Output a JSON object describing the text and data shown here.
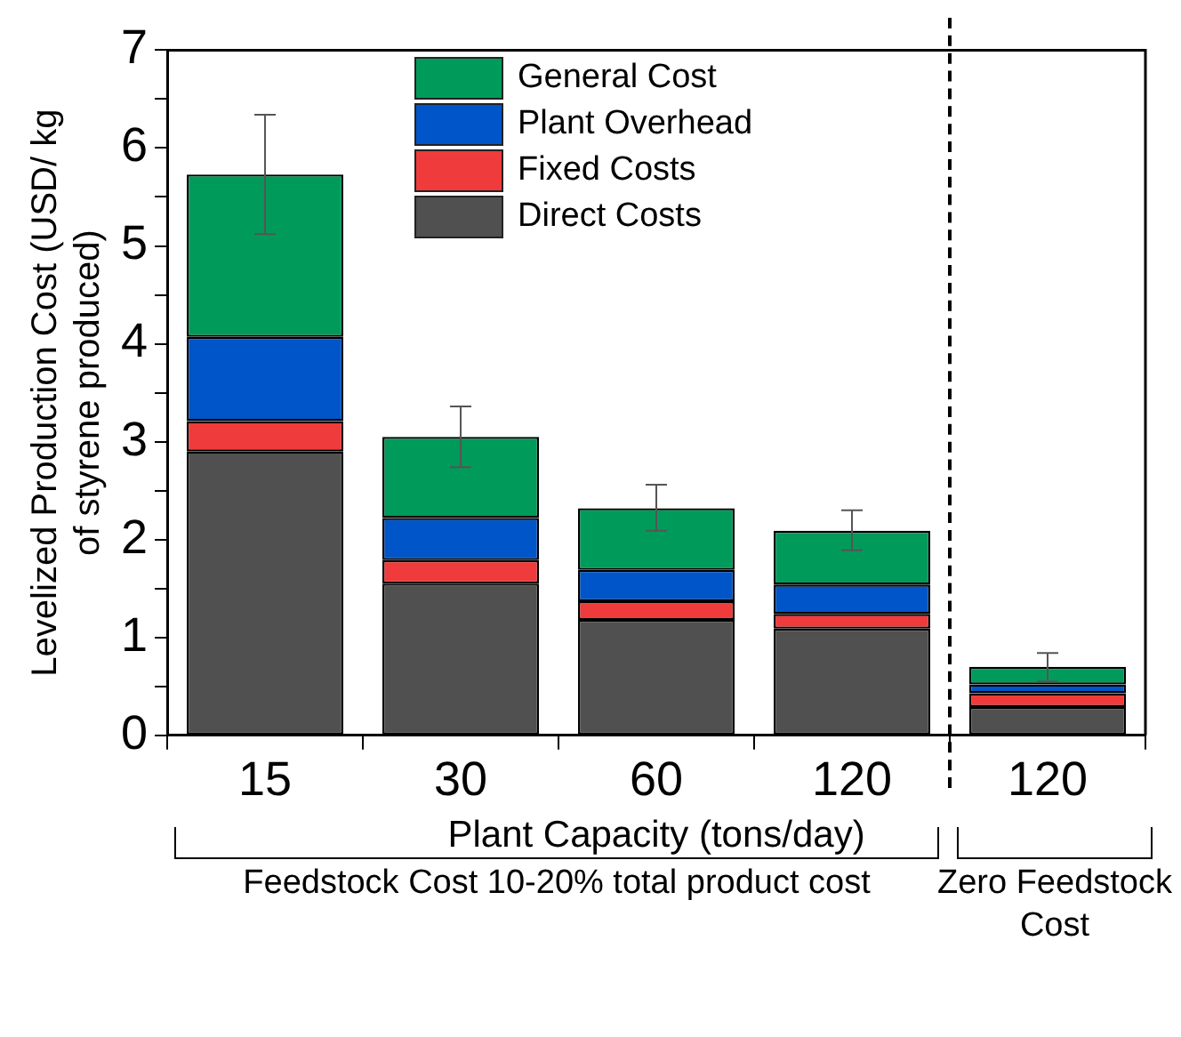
{
  "chart_data": {
    "type": "bar",
    "stacked": true,
    "xlabel": "Plant Capacity (tons/day)",
    "ylabel": "Levelized Production Cost (USD/ kg\nof styrene produced)",
    "categories": [
      "15",
      "30",
      "60",
      "120",
      "120"
    ],
    "series": [
      {
        "name": "Direct Costs",
        "color": "#505050",
        "values": [
          2.9,
          1.55,
          1.18,
          1.09,
          0.29
        ]
      },
      {
        "name": "Fixed Costs",
        "color": "#ef3b3b",
        "values": [
          0.31,
          0.24,
          0.19,
          0.15,
          0.14
        ]
      },
      {
        "name": "Plant Overhead",
        "color": "#0055c8",
        "values": [
          0.86,
          0.43,
          0.32,
          0.3,
          0.09
        ]
      },
      {
        "name": "General Cost",
        "color": "#009b5a",
        "values": [
          1.66,
          0.83,
          0.63,
          0.55,
          0.18
        ],
        "errors": [
          [
            5.12,
            6.34
          ],
          [
            2.74,
            3.36
          ],
          [
            2.09,
            2.56
          ],
          [
            1.89,
            2.3
          ],
          [
            0.55,
            0.84
          ]
        ]
      }
    ],
    "ylim": [
      0,
      7
    ],
    "yticks": [
      0,
      {
        "value": 0.5,
        "label": null
      },
      1,
      {
        "value": 1.5,
        "label": null
      },
      2,
      {
        "value": 2.5,
        "label": null
      },
      3,
      {
        "value": 3.5,
        "label": null
      },
      4,
      {
        "value": 4.5,
        "label": null
      },
      5,
      {
        "value": 5.5,
        "label": null
      },
      6,
      {
        "value": 6.5,
        "label": null
      },
      7
    ],
    "annotations": [
      "Feedstock Cost 10-20% total product cost",
      "Zero Feedstock Cost"
    ],
    "legend": "top",
    "grid": false
  }
}
